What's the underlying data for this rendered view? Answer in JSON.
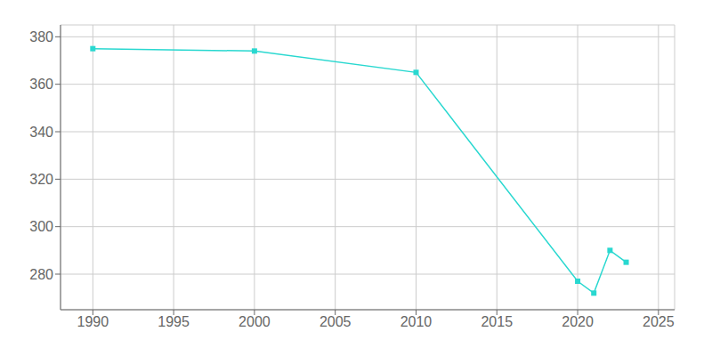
{
  "chart_data": {
    "type": "line",
    "x": [
      1990,
      2000,
      2010,
      2020,
      2021,
      2022,
      2023
    ],
    "values": [
      375,
      374,
      365,
      277,
      272,
      290,
      285
    ],
    "color": "#29d8d0",
    "marker": "square",
    "xlim": [
      1988,
      2026
    ],
    "ylim": [
      265,
      385
    ],
    "xticks": [
      1990,
      1995,
      2000,
      2005,
      2010,
      2015,
      2020,
      2025
    ],
    "yticks": [
      280,
      300,
      320,
      340,
      360,
      380
    ],
    "grid": true
  }
}
